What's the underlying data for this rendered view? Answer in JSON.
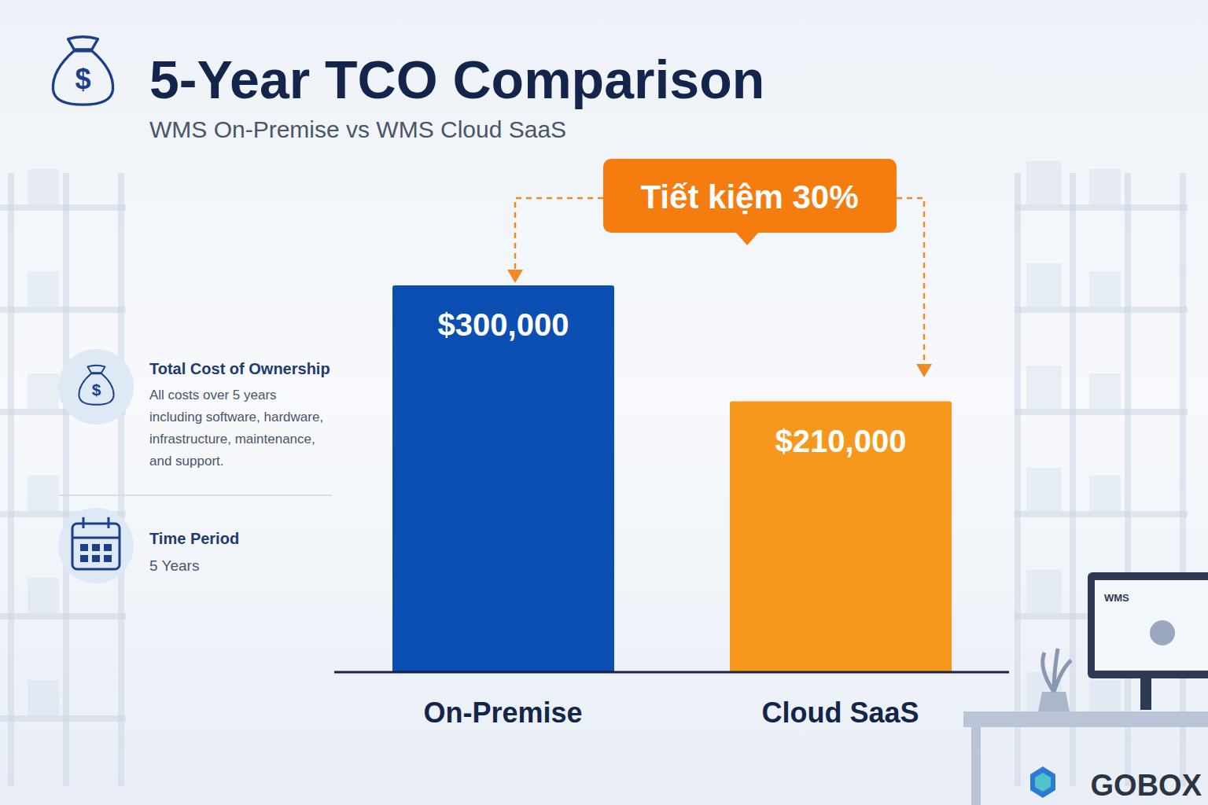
{
  "chart_data": {
    "type": "bar",
    "title": "5-Year TCO Comparison",
    "subtitle": "WMS On-Premise vs WMS Cloud SaaS",
    "categories": [
      "On-Premise",
      "Cloud SaaS"
    ],
    "values": [
      300000,
      210000
    ],
    "value_labels": [
      "$300,000",
      "$210,000"
    ],
    "colors": [
      "#0b4fb3",
      "#f7971c"
    ],
    "ylim": [
      0,
      300000
    ],
    "data_labels": true,
    "tick_labels": "x",
    "grid": false,
    "annotations": [
      {
        "text": "Tiết kiệm 30%"
      }
    ],
    "side_panel": [
      {
        "title": "Total Cost of Ownership",
        "text": "All costs over 5 years including software, hardware, infrastructure, maintenance, and support."
      },
      {
        "title": "Time Period",
        "text": "5 Years"
      }
    ],
    "logo": "GOBOX",
    "screen_label": "WMS"
  }
}
